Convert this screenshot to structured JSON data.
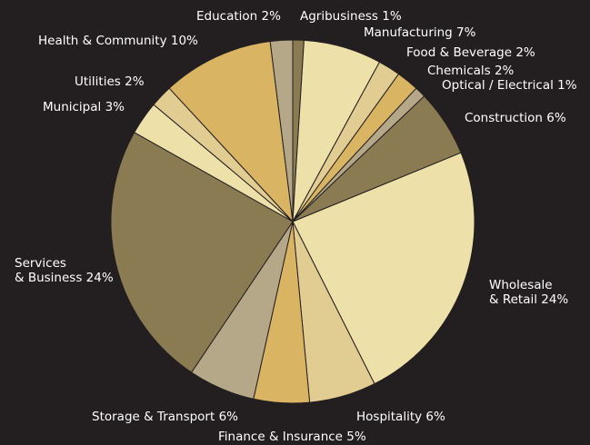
{
  "chart_data": {
    "type": "pie",
    "title": "",
    "start_angle_deg": 0,
    "direction": "clockwise",
    "slices": [
      {
        "label": "Agribusiness 1%",
        "value": 1,
        "color": "#8b7b52"
      },
      {
        "label": "Manufacturing 7%",
        "value": 7,
        "color": "#ede1a9"
      },
      {
        "label": "Food & Beverage 2%",
        "value": 2,
        "color": "#e1cc92"
      },
      {
        "label": "Chemicals 2%",
        "value": 2,
        "color": "#d9b462"
      },
      {
        "label": "Optical / Electrical 1%",
        "value": 1,
        "color": "#b5a888"
      },
      {
        "label": "Construction 6%",
        "value": 6,
        "color": "#8b7b52"
      },
      {
        "label": [
          "Wholesale",
          "& Retail 24%"
        ],
        "value": 24,
        "color": "#ede1a9"
      },
      {
        "label": "Hospitality 6%",
        "value": 6,
        "color": "#e1cc92"
      },
      {
        "label": "Finance & Insurance 5%",
        "value": 5,
        "color": "#d9b462"
      },
      {
        "label": "Storage & Transport 6%",
        "value": 6,
        "color": "#b5a888"
      },
      {
        "label": [
          "Services",
          "& Business 24%"
        ],
        "value": 24,
        "color": "#8b7b52"
      },
      {
        "label": "Municipal 3%",
        "value": 3,
        "color": "#ede1a9"
      },
      {
        "label": "Utilities 2%",
        "value": 2,
        "color": "#e1cc92"
      },
      {
        "label": "Health & Community 10%",
        "value": 10,
        "color": "#d9b462"
      },
      {
        "label": "Education 2%",
        "value": 2,
        "color": "#b5a888"
      }
    ]
  }
}
